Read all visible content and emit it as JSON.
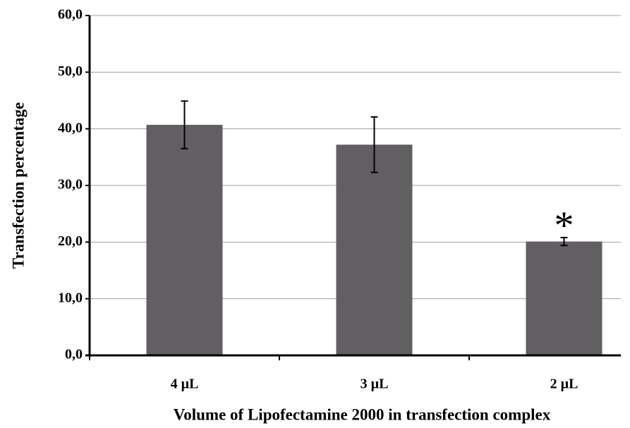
{
  "chart_data": {
    "type": "bar",
    "categories": [
      "4 µL",
      "3 µL",
      "2 µL"
    ],
    "values": [
      40.7,
      37.2,
      20.1
    ],
    "errors": [
      4.2,
      4.9,
      0.7
    ],
    "color": "#625f63",
    "ylim": [
      0,
      60
    ],
    "yticks": [
      {
        "value": 0,
        "label": "0,0"
      },
      {
        "value": 10,
        "label": "10,0"
      },
      {
        "value": 20,
        "label": "20,0"
      },
      {
        "value": 30,
        "label": "30,0"
      },
      {
        "value": 40,
        "label": "40,0"
      },
      {
        "value": 50,
        "label": "50,0"
      },
      {
        "value": 60,
        "label": "60,0"
      }
    ],
    "grid": true,
    "ylabel": "Transfection  percentage",
    "xlabel": "Volume  of Lipofectamine 2000 in transfection  complex",
    "annotations": [
      {
        "text": "*",
        "category": 2
      }
    ]
  }
}
